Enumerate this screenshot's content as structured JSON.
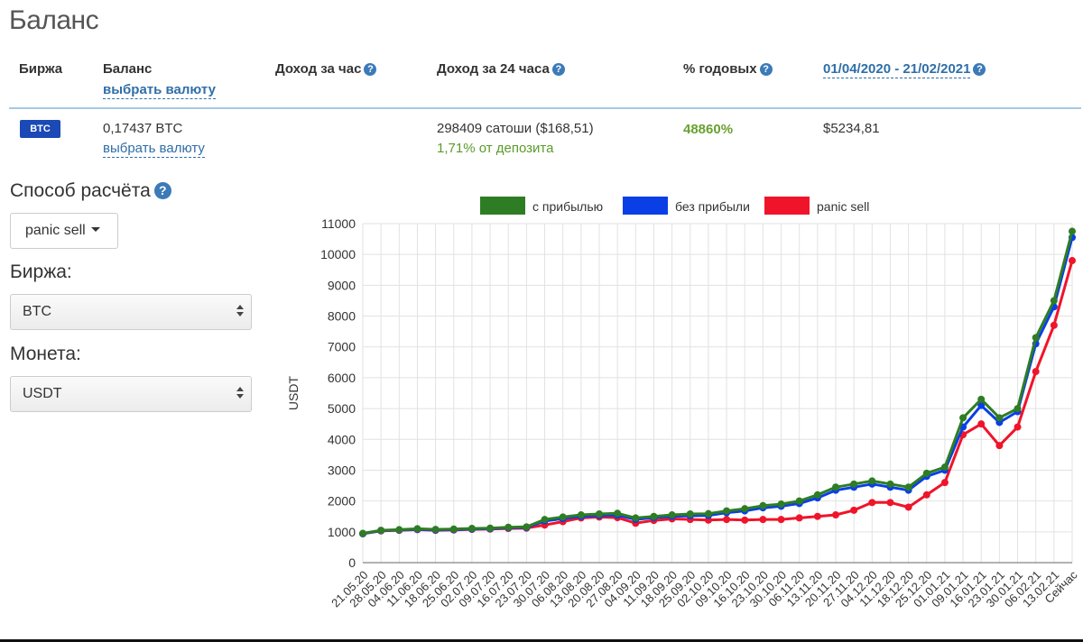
{
  "page": {
    "title": "Баланс"
  },
  "table": {
    "headers": {
      "exchange": "Биржа",
      "balance": "Баланс",
      "balance_link": "выбрать валюту",
      "hourly": "Доход за час",
      "daily": "Доход за 24 часа",
      "annual": "% годовых",
      "period": "01/04/2020 - 21/02/2021"
    },
    "row": {
      "badge": "BTC",
      "balance": "0,17437 BTC",
      "balance_link": "выбрать валюту",
      "daily": "298409 сатоши ($168,51)",
      "daily_pct": "1,71% от депозита",
      "annual": "48860%",
      "period_value": "$5234,81"
    }
  },
  "form": {
    "method_label": "Способ расчёта",
    "method_value": "panic sell",
    "exchange_label": "Биржа:",
    "exchange_value": "BTC",
    "coin_label": "Монета:",
    "coin_value": "USDT"
  },
  "colors": {
    "green": "#2e7d24",
    "blue": "#0a3fe6",
    "red": "#f0142a",
    "grid": "#e2e2e2",
    "link": "#2f6fa8"
  },
  "chart_data": {
    "type": "line",
    "ylabel": "USDT",
    "ylim": [
      0,
      11000
    ],
    "yticks": [
      0,
      1000,
      2000,
      3000,
      4000,
      5000,
      6000,
      7000,
      8000,
      9000,
      10000,
      11000
    ],
    "categories": [
      "21.05.20",
      "28.05.20",
      "04.06.20",
      "11.06.20",
      "18.06.20",
      "25.06.20",
      "02.07.20",
      "09.07.20",
      "16.07.20",
      "23.07.20",
      "30.07.20",
      "06.08.20",
      "13.08.20",
      "20.08.20",
      "27.08.20",
      "04.09.20",
      "11.09.20",
      "18.09.20",
      "25.09.20",
      "02.10.20",
      "09.10.20",
      "16.10.20",
      "23.10.20",
      "30.10.20",
      "06.11.20",
      "13.11.20",
      "20.11.20",
      "27.11.20",
      "04.12.20",
      "11.12.20",
      "18.12.20",
      "25.12.20",
      "01.01.21",
      "09.01.21",
      "16.01.21",
      "23.01.21",
      "30.01.21",
      "06.02.21",
      "13.02.21",
      "Сейчас"
    ],
    "legend_position": "top",
    "series": [
      {
        "name": "с прибылью",
        "values": [
          950,
          1050,
          1070,
          1100,
          1080,
          1090,
          1110,
          1120,
          1150,
          1160,
          1400,
          1480,
          1550,
          1580,
          1600,
          1450,
          1500,
          1550,
          1580,
          1590,
          1680,
          1750,
          1850,
          1900,
          2000,
          2200,
          2450,
          2550,
          2650,
          2550,
          2450,
          2900,
          3100,
          4700,
          5300,
          4700,
          5000,
          7300,
          8500,
          10750
        ],
        "color": "#2e7d24"
      },
      {
        "name": "без прибыли",
        "values": [
          940,
          1040,
          1060,
          1080,
          1060,
          1070,
          1090,
          1100,
          1130,
          1140,
          1350,
          1430,
          1500,
          1530,
          1540,
          1400,
          1460,
          1500,
          1520,
          1530,
          1620,
          1680,
          1780,
          1830,
          1920,
          2100,
          2350,
          2450,
          2550,
          2450,
          2350,
          2800,
          3000,
          4400,
          5100,
          4550,
          4900,
          7100,
          8300,
          10550
        ],
        "color": "#0a3fe6"
      },
      {
        "name": "panic sell",
        "values": [
          940,
          1030,
          1050,
          1070,
          1050,
          1060,
          1080,
          1090,
          1110,
          1120,
          1220,
          1330,
          1450,
          1480,
          1460,
          1280,
          1370,
          1420,
          1400,
          1380,
          1400,
          1380,
          1400,
          1400,
          1450,
          1500,
          1550,
          1700,
          1950,
          1950,
          1800,
          2200,
          2600,
          4150,
          4500,
          3800,
          4400,
          6200,
          7700,
          9800
        ],
        "color": "#f0142a"
      }
    ]
  }
}
